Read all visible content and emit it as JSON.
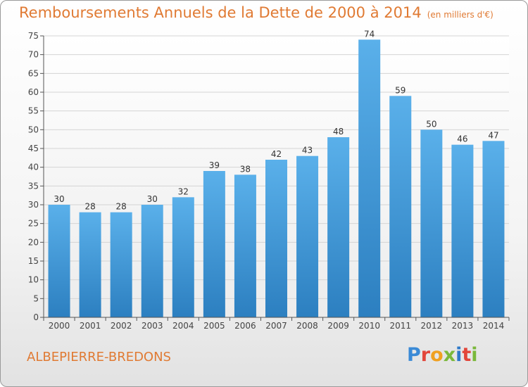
{
  "title": "Remboursements Annuels de la Dette de 2000 à 2014",
  "unit_note": "(en milliers d'€)",
  "commune": "ALBEPIERRE-BREDONS",
  "logo": {
    "letters": [
      "P",
      "r",
      "o",
      "x",
      "i",
      "t",
      "i"
    ],
    "colors": [
      "#3a8ad6",
      "#e2453a",
      "#f0a020",
      "#7ab83a",
      "#2f79c9",
      "#e2453a",
      "#7ab83a"
    ]
  },
  "colors": {
    "bar_top": "#5ab0ea",
    "bar_bottom": "#2c7fc0",
    "title": "#e07a33",
    "grid": "#d4d4d4"
  },
  "chart_data": {
    "type": "bar",
    "categories": [
      "2000",
      "2001",
      "2002",
      "2003",
      "2004",
      "2005",
      "2006",
      "2007",
      "2008",
      "2009",
      "2010",
      "2011",
      "2012",
      "2013",
      "2014"
    ],
    "values": [
      30,
      28,
      28,
      30,
      32,
      39,
      38,
      42,
      43,
      48,
      74,
      59,
      50,
      46,
      47
    ],
    "ylim": [
      0,
      75
    ],
    "yticks": [
      0,
      5,
      10,
      15,
      20,
      25,
      30,
      35,
      40,
      45,
      50,
      55,
      60,
      65,
      70,
      75
    ],
    "grid": true
  }
}
